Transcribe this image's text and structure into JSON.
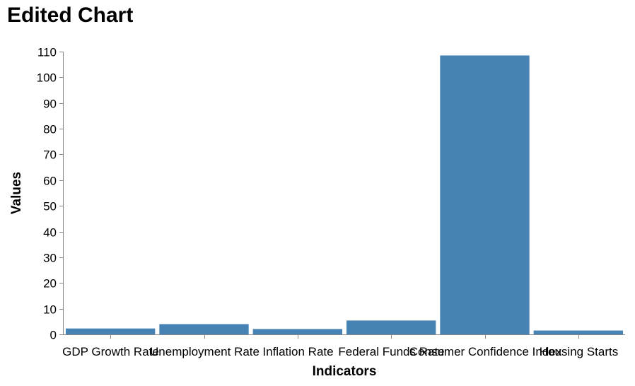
{
  "chart_data": {
    "type": "bar",
    "title": "Edited Chart",
    "xlabel": "Indicators",
    "ylabel": "Values",
    "categories": [
      "GDP Growth Rate",
      "Unemployment Rate",
      "Inflation Rate",
      "Federal Funds Rate",
      "Consumer Confidence Index",
      "Housing Starts"
    ],
    "values": [
      2.3,
      4.0,
      2.1,
      5.4,
      108.5,
      1.5
    ],
    "ylim": [
      0,
      110
    ],
    "yticks": [
      "0",
      "10",
      "20",
      "30",
      "40",
      "50",
      "60",
      "70",
      "80",
      "90",
      "100",
      "110"
    ],
    "grid": false,
    "bar_color": "#4682b4",
    "axis_color": "#888888"
  }
}
